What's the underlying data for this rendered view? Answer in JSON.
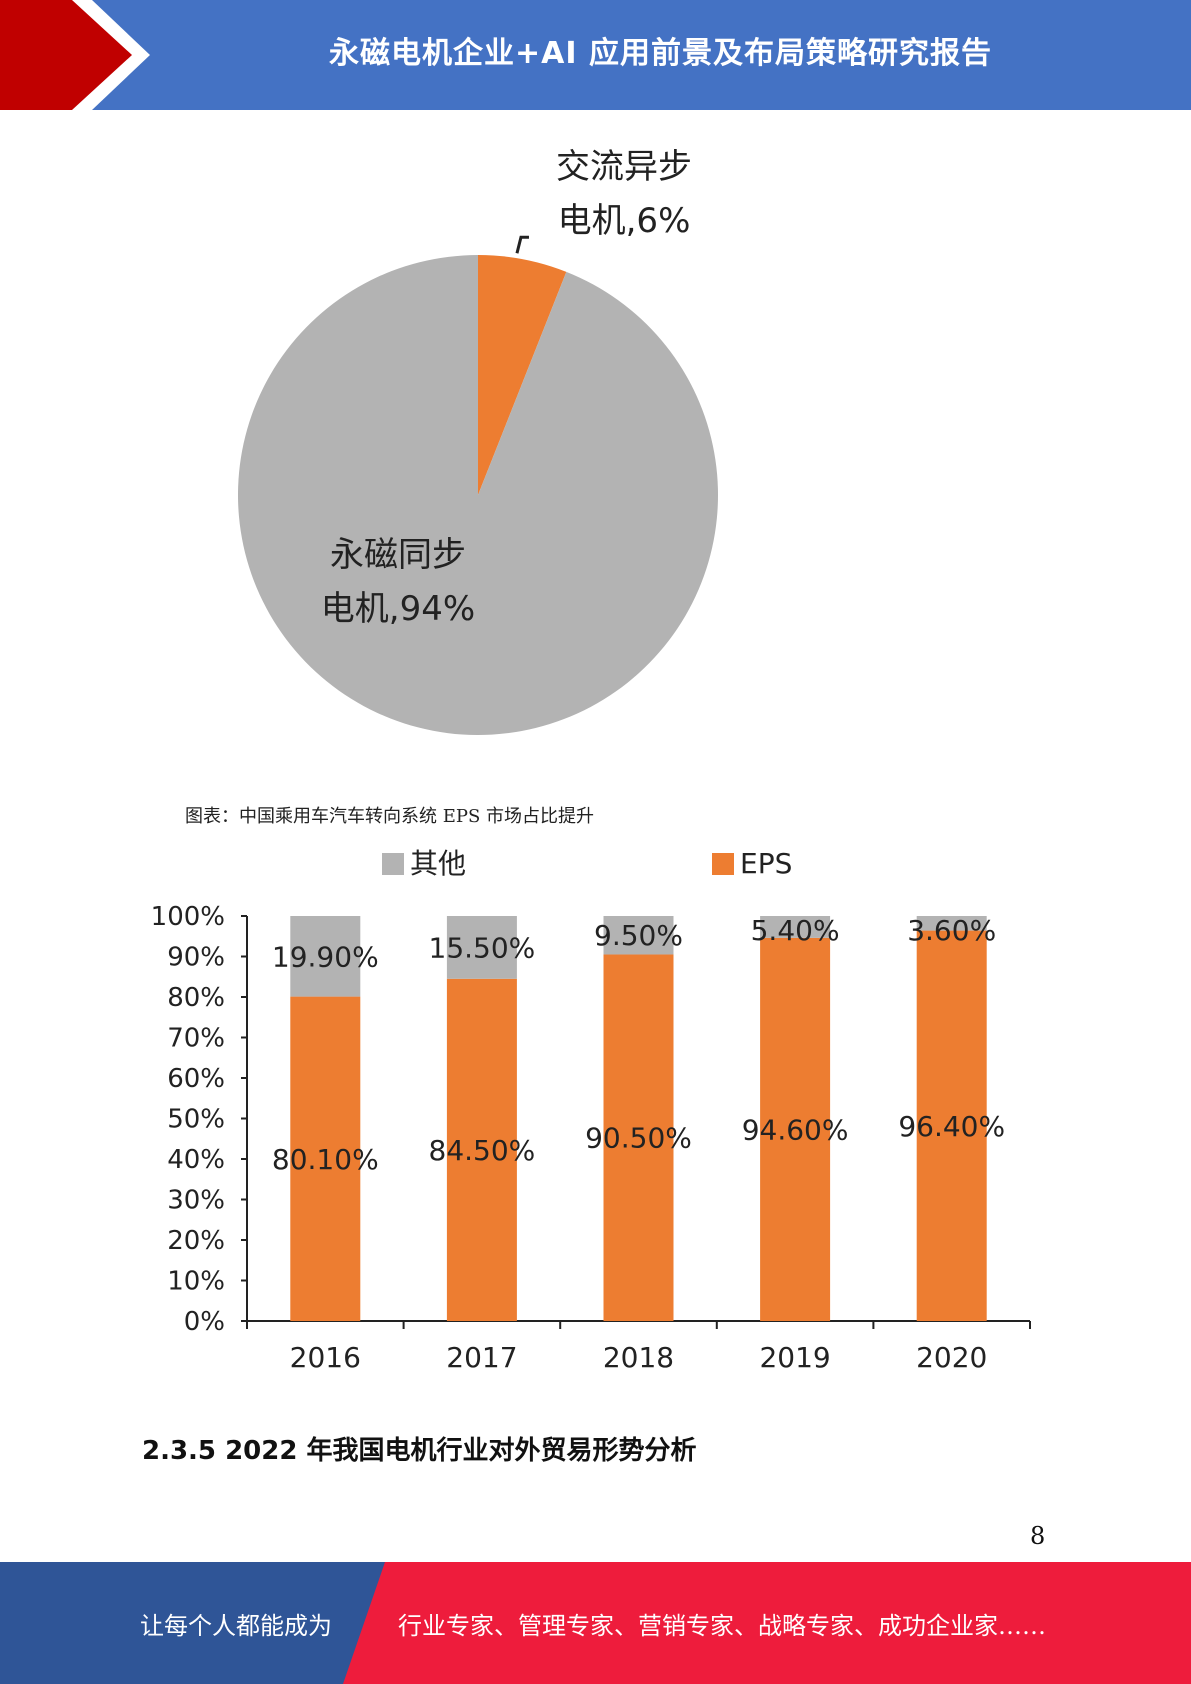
{
  "header": {
    "title": "永磁电机企业+AI 应用前景及布局策略研究报告",
    "colors": {
      "blue": "#4472c4",
      "red": "#c00000"
    }
  },
  "chart_data": [
    {
      "type": "pie",
      "slices": [
        {
          "label": "交流异步电机",
          "value": 6,
          "label_lines": [
            "交流异步",
            "电机,6%"
          ],
          "color": "#ed7d31"
        },
        {
          "label": "永磁同步电机",
          "value": 94,
          "label_lines": [
            "永磁同步",
            "电机,94%"
          ],
          "color": "#b3b3b3"
        }
      ]
    },
    {
      "type": "bar",
      "stacked": true,
      "categories": [
        "2016",
        "2017",
        "2018",
        "2019",
        "2020"
      ],
      "series": [
        {
          "name": "EPS",
          "color": "#ed7d31",
          "values": [
            80.1,
            84.5,
            90.5,
            94.6,
            96.4
          ],
          "labels": [
            "80.10%",
            "84.50%",
            "90.50%",
            "94.60%",
            "96.40%"
          ]
        },
        {
          "name": "其他",
          "color": "#b3b3b3",
          "values": [
            19.9,
            15.5,
            9.5,
            5.4,
            3.6
          ],
          "labels": [
            "19.90%",
            "15.50%",
            "9.50%",
            "5.40%",
            "3.60%"
          ]
        }
      ],
      "legend_order": [
        "其他",
        "EPS"
      ],
      "legend_position": "top",
      "ylim": [
        0,
        100
      ],
      "yticks": [
        "0%",
        "10%",
        "20%",
        "30%",
        "40%",
        "50%",
        "60%",
        "70%",
        "80%",
        "90%",
        "100%"
      ]
    }
  ],
  "figure_caption": "图表：中国乘用车汽车转向系统 EPS 市场占比提升",
  "section_heading": "2.3.5 2022 年我国电机行业对外贸易形势分析",
  "page_number": "8",
  "footer": {
    "left_text": "让每个人都能成为",
    "right_text": "行业专家、管理专家、营销专家、战略专家、成功企业家……",
    "colors": {
      "blue": "#2f5597",
      "red": "#ee1c3c"
    }
  }
}
